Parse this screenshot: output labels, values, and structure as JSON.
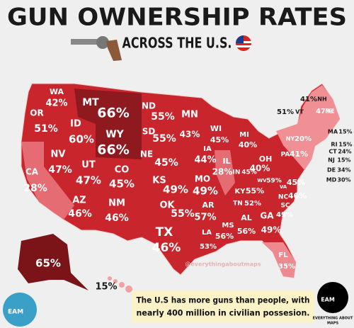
{
  "header": {
    "title": "GUN OWNERSHIP RATES",
    "subtitle": "ACROSS THE U.S."
  },
  "states": [
    {
      "abbr": "WA",
      "value": "42%"
    },
    {
      "abbr": "OR",
      "value": "51%"
    },
    {
      "abbr": "CA",
      "value": "28%"
    },
    {
      "abbr": "NV",
      "value": "47%"
    },
    {
      "abbr": "ID",
      "value": "60%"
    },
    {
      "abbr": "MT",
      "value": "66%"
    },
    {
      "abbr": "WY",
      "value": "66%"
    },
    {
      "abbr": "UT",
      "value": "47%"
    },
    {
      "abbr": "AZ",
      "value": "46%"
    },
    {
      "abbr": "CO",
      "value": "45%"
    },
    {
      "abbr": "NM",
      "value": "46%"
    },
    {
      "abbr": "ND",
      "value": "55%"
    },
    {
      "abbr": "SD",
      "value": "55%"
    },
    {
      "abbr": "NE",
      "value": "45%"
    },
    {
      "abbr": "KS",
      "value": "49%"
    },
    {
      "abbr": "OK",
      "value": "55%"
    },
    {
      "abbr": "TX",
      "value": "46%"
    },
    {
      "abbr": "MN",
      "value": "43%"
    },
    {
      "abbr": "IA",
      "value": "44%"
    },
    {
      "abbr": "MO",
      "value": "49%"
    },
    {
      "abbr": "AR",
      "value": "57%"
    },
    {
      "abbr": "LA",
      "value": "53%"
    },
    {
      "abbr": "WI",
      "value": "45%"
    },
    {
      "abbr": "IL",
      "value": "28%"
    },
    {
      "abbr": "MI",
      "value": "40%"
    },
    {
      "abbr": "IN",
      "value": "45%"
    },
    {
      "abbr": "OH",
      "value": "40%"
    },
    {
      "abbr": "KY",
      "value": "55%"
    },
    {
      "abbr": "TN",
      "value": "52%"
    },
    {
      "abbr": "MS",
      "value": "56%"
    },
    {
      "abbr": "AL",
      "value": "56%"
    },
    {
      "abbr": "GA",
      "value": "49%"
    },
    {
      "abbr": "FL",
      "value": "35%"
    },
    {
      "abbr": "SC",
      "value": "49%"
    },
    {
      "abbr": "NC",
      "value": "46%"
    },
    {
      "abbr": "VA",
      "value": "45%"
    },
    {
      "abbr": "WV",
      "value": "59%"
    },
    {
      "abbr": "PA",
      "value": "41%"
    },
    {
      "abbr": "NY",
      "value": "20%"
    },
    {
      "abbr": "ME",
      "value": "47%"
    },
    {
      "abbr": "NH",
      "value": "41%"
    },
    {
      "abbr": "VT",
      "value": "51%"
    },
    {
      "abbr": "MA",
      "value": "15%"
    },
    {
      "abbr": "RI",
      "value": "15%"
    },
    {
      "abbr": "CT",
      "value": "24%"
    },
    {
      "abbr": "NJ",
      "value": "15%"
    },
    {
      "abbr": "DE",
      "value": "34%"
    },
    {
      "abbr": "MD",
      "value": "30%"
    },
    {
      "value": "65%"
    },
    {
      "value": "15%"
    }
  ],
  "watermark": "@everythingaboutmaps",
  "footer": {
    "line1": "The U.S has more guns than people, with",
    "line2": "nearly 400 million in civilian possesion."
  },
  "logo": {
    "left": "EAM",
    "right": "EAM",
    "caption1": "EVERYTHING ABOUT",
    "caption2": "MAPS"
  }
}
